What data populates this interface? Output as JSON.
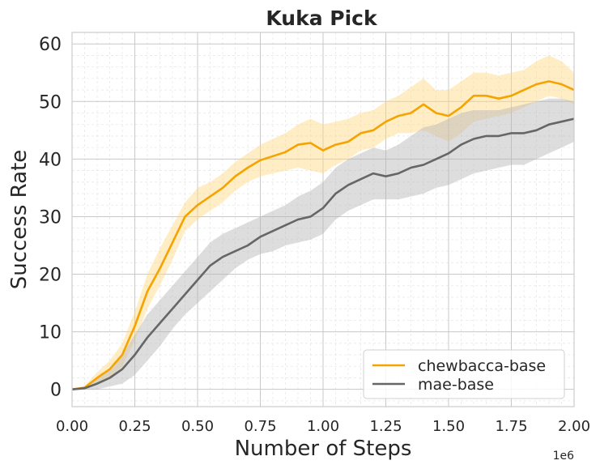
{
  "chart_data": {
    "type": "line",
    "title": "Kuka Pick",
    "xlabel": "Number of Steps",
    "ylabel": "Success Rate",
    "x_offset_label": "1e6",
    "xlim": [
      0,
      2.0
    ],
    "ylim": [
      -3,
      62
    ],
    "x_ticks": [
      0,
      0.25,
      0.5,
      0.75,
      1.0,
      1.25,
      1.5,
      1.75,
      2.0
    ],
    "x_tick_labels": [
      "0.00",
      "0.25",
      "0.50",
      "0.75",
      "1.00",
      "1.25",
      "1.50",
      "1.75",
      "2.00"
    ],
    "y_ticks": [
      0,
      10,
      20,
      30,
      40,
      50,
      60
    ],
    "y_tick_labels": [
      "0",
      "10",
      "20",
      "30",
      "40",
      "50",
      "60"
    ],
    "grid": true,
    "legend_position": "bottom-right",
    "x": [
      0.0,
      0.05,
      0.1,
      0.15,
      0.2,
      0.25,
      0.3,
      0.35,
      0.4,
      0.45,
      0.5,
      0.55,
      0.6,
      0.65,
      0.7,
      0.75,
      0.8,
      0.85,
      0.9,
      0.95,
      1.0,
      1.05,
      1.1,
      1.15,
      1.2,
      1.25,
      1.3,
      1.35,
      1.4,
      1.45,
      1.5,
      1.55,
      1.6,
      1.65,
      1.7,
      1.75,
      1.8,
      1.85,
      1.9,
      1.95,
      2.0
    ],
    "series": [
      {
        "name": "chewbacca-base",
        "color": "#f5a300",
        "band_color": "#ffd680",
        "values": [
          0.0,
          0.3,
          2.0,
          3.5,
          6.0,
          11.0,
          17.0,
          21.0,
          25.5,
          30.0,
          32.0,
          33.5,
          35.0,
          37.0,
          38.5,
          39.8,
          40.5,
          41.2,
          42.5,
          42.8,
          41.5,
          42.5,
          43.0,
          44.5,
          45.0,
          46.5,
          47.5,
          48.0,
          49.5,
          48.0,
          47.5,
          49.0,
          51.0,
          51.0,
          50.5,
          51.0,
          52.0,
          53.0,
          53.5,
          53.0,
          52.0
        ],
        "lower": [
          0.0,
          0.0,
          1.0,
          2.0,
          4.0,
          8.5,
          14.0,
          18.0,
          22.5,
          27.5,
          29.5,
          31.0,
          32.5,
          34.5,
          36.0,
          37.0,
          37.5,
          38.0,
          38.5,
          38.0,
          37.5,
          39.0,
          40.0,
          41.5,
          42.0,
          43.5,
          44.5,
          44.5,
          45.0,
          44.0,
          43.0,
          44.5,
          46.5,
          47.0,
          47.5,
          48.0,
          49.0,
          50.0,
          51.0,
          50.5,
          49.5
        ],
        "upper": [
          0.0,
          0.6,
          3.0,
          5.0,
          8.0,
          13.5,
          20.0,
          24.5,
          28.5,
          32.5,
          35.0,
          36.0,
          37.5,
          39.5,
          41.0,
          42.5,
          43.5,
          44.5,
          46.0,
          47.0,
          46.0,
          46.5,
          47.0,
          48.0,
          48.5,
          50.0,
          51.0,
          52.5,
          54.0,
          52.0,
          52.0,
          53.5,
          55.0,
          55.0,
          54.5,
          55.0,
          55.5,
          57.0,
          58.0,
          57.0,
          55.0
        ]
      },
      {
        "name": "mae-base",
        "color": "#666666",
        "band_color": "#b4b4b4",
        "values": [
          0.0,
          0.2,
          1.0,
          2.0,
          3.5,
          6.0,
          9.0,
          11.5,
          14.0,
          16.5,
          19.0,
          21.5,
          23.0,
          24.0,
          25.0,
          26.5,
          27.5,
          28.5,
          29.5,
          30.0,
          31.5,
          34.0,
          35.5,
          36.5,
          37.5,
          37.0,
          37.5,
          38.5,
          39.0,
          40.0,
          41.0,
          42.5,
          43.5,
          44.0,
          44.0,
          44.5,
          44.5,
          45.0,
          46.0,
          46.5,
          47.0
        ],
        "lower": [
          0.0,
          0.0,
          0.0,
          0.5,
          1.0,
          2.5,
          5.0,
          7.5,
          10.5,
          13.0,
          15.0,
          17.0,
          19.0,
          21.0,
          22.5,
          23.5,
          24.0,
          25.0,
          25.5,
          26.0,
          27.0,
          29.5,
          31.0,
          32.0,
          33.0,
          33.0,
          33.0,
          33.5,
          34.0,
          35.0,
          35.5,
          36.5,
          37.5,
          38.0,
          38.5,
          39.0,
          39.0,
          40.0,
          41.0,
          42.0,
          43.0
        ],
        "upper": [
          0.0,
          0.5,
          2.0,
          3.5,
          6.0,
          9.5,
          13.0,
          15.5,
          18.0,
          20.5,
          23.0,
          25.5,
          27.0,
          28.0,
          29.0,
          30.0,
          31.0,
          32.0,
          33.5,
          34.5,
          36.0,
          38.5,
          40.0,
          41.0,
          42.0,
          41.5,
          42.5,
          44.0,
          45.5,
          46.0,
          47.0,
          48.0,
          48.5,
          48.5,
          48.5,
          49.0,
          49.5,
          50.0,
          50.5,
          50.5,
          50.0
        ]
      }
    ]
  }
}
